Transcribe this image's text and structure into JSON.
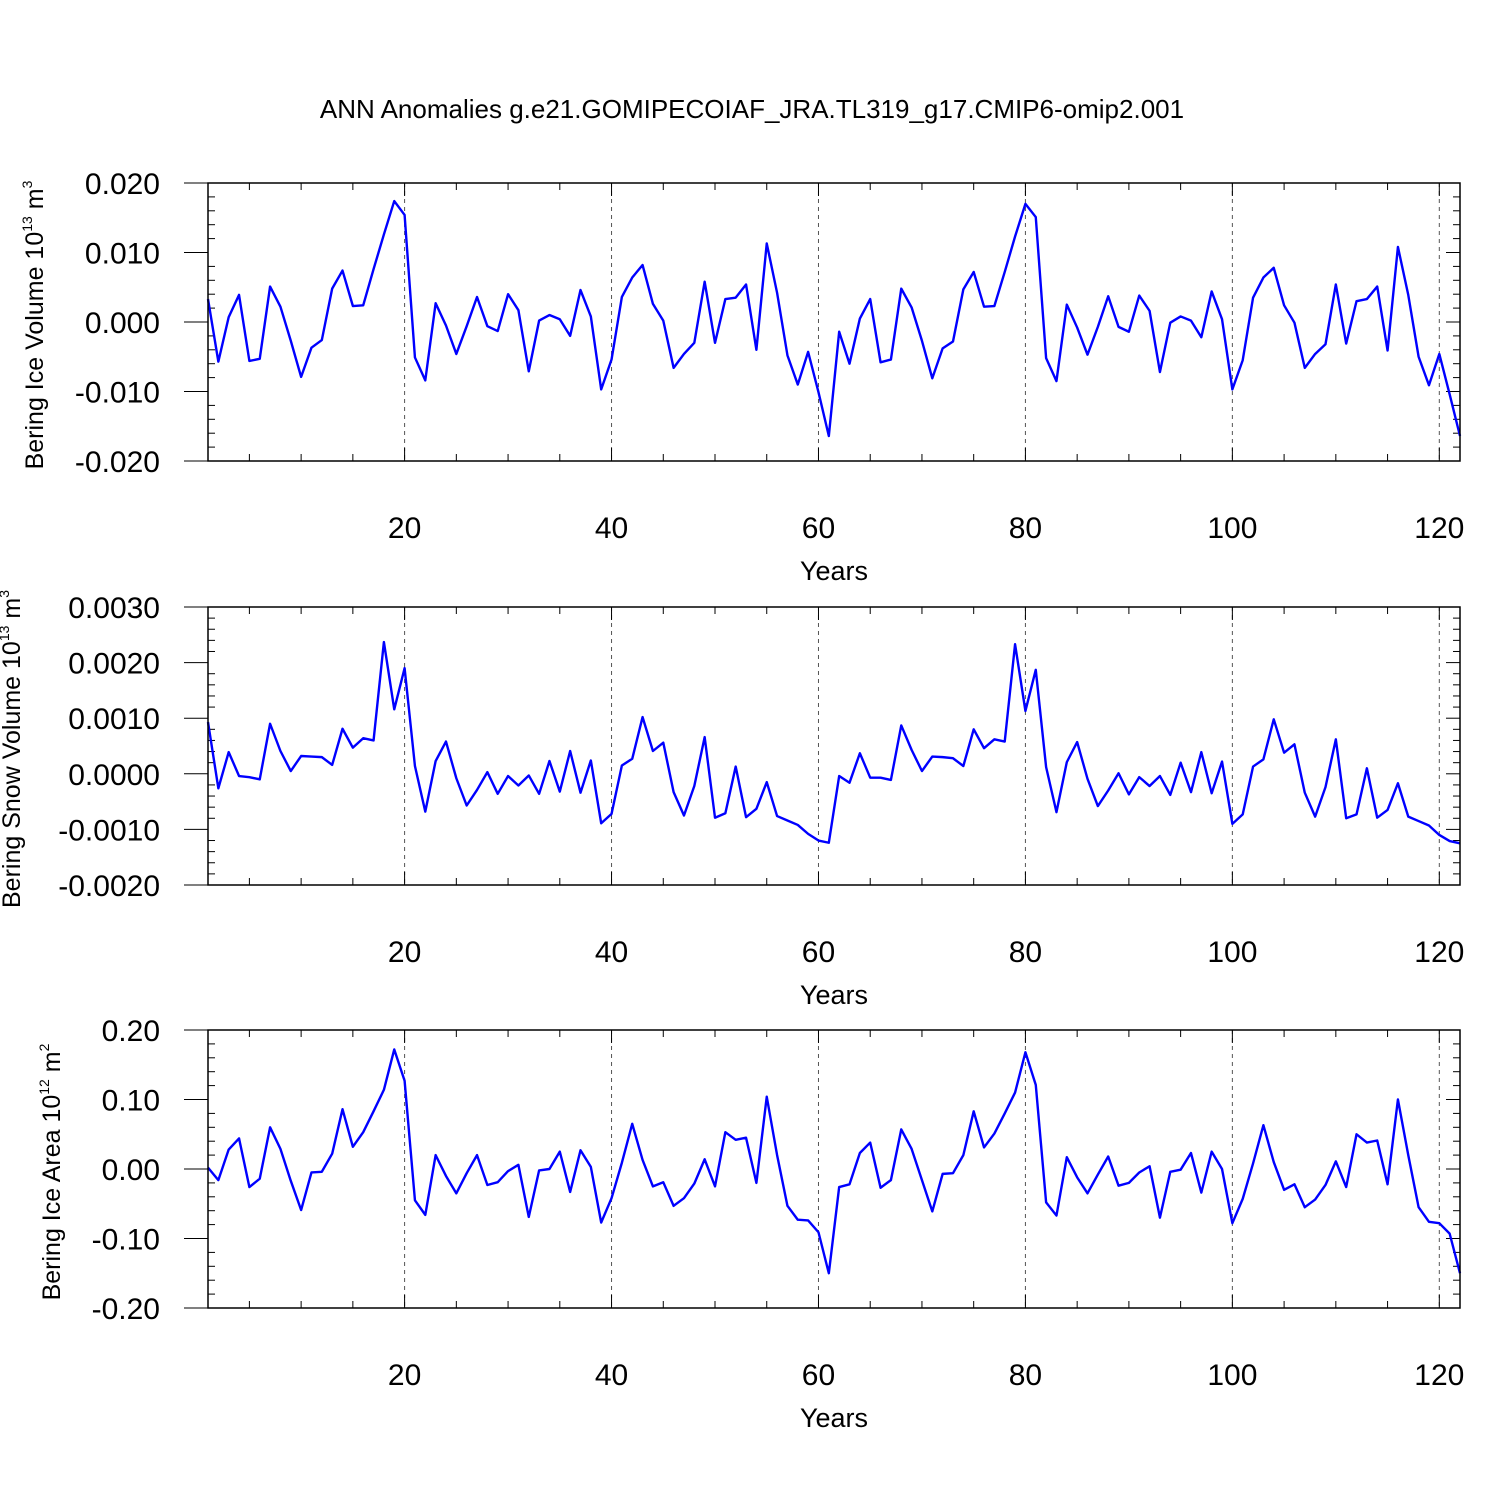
{
  "title": "ANN Anomalies g.e21.GOMIPECOIAF_JRA.TL319_g17.CMIP6-omip2.001",
  "line_color": "#0000ff",
  "chart_data": [
    {
      "type": "line",
      "title": "",
      "xlabel": "Years",
      "ylabel": {
        "base": "Bering Ice Volume 10",
        "exp": "13",
        "unit": " m",
        "unit_exp": "3"
      },
      "xlim": [
        1,
        122
      ],
      "ylim": [
        -0.02,
        0.02
      ],
      "xticks": [
        20,
        40,
        60,
        80,
        100,
        120
      ],
      "xtick_labels": [
        "20",
        "40",
        "60",
        "80",
        "100",
        "120"
      ],
      "yticks": [
        0.02,
        0.01,
        0.0,
        -0.01,
        -0.02
      ],
      "ytick_labels": [
        "0.020",
        "0.010",
        "0.000",
        "-0.010",
        "-0.020"
      ],
      "grid": "x-dashed",
      "series": [
        {
          "name": "Bering Ice Volume",
          "x_start": 1,
          "values": [
            0.0033,
            -0.0057,
            0.0007,
            0.0039,
            -0.0056,
            -0.0053,
            0.0051,
            0.0022,
            -0.0027,
            -0.0079,
            -0.0037,
            -0.0026,
            0.0048,
            0.0074,
            0.0023,
            0.0024,
            0.0076,
            0.0126,
            0.0174,
            0.0154,
            -0.0051,
            -0.0084,
            0.0027,
            -0.0005,
            -0.0046,
            -0.0006,
            0.0036,
            -0.0006,
            -0.0013,
            0.004,
            0.0017,
            -0.0071,
            0.0002,
            0.001,
            0.0004,
            -0.002,
            0.0046,
            0.0008,
            -0.0097,
            -0.0054,
            0.0036,
            0.0064,
            0.0082,
            0.0026,
            0.0002,
            -0.0066,
            -0.0046,
            -0.003,
            0.0058,
            -0.003,
            0.0033,
            0.0035,
            0.0054,
            -0.004,
            0.0113,
            0.0042,
            -0.0048,
            -0.009,
            -0.0043,
            -0.0101,
            -0.0164,
            -0.0014,
            -0.006,
            0.0005,
            0.0033,
            -0.0058,
            -0.0054,
            0.0048,
            0.0021,
            -0.0027,
            -0.0081,
            -0.0038,
            -0.0028,
            0.0047,
            0.0072,
            0.0022,
            0.0023,
            0.0072,
            0.0123,
            0.017,
            0.0151,
            -0.0052,
            -0.0085,
            0.0025,
            -0.0008,
            -0.0047,
            -0.0007,
            0.0037,
            -0.0007,
            -0.0014,
            0.0038,
            0.0016,
            -0.0072,
            -0.0001,
            0.0008,
            0.0002,
            -0.0022,
            0.0044,
            0.0004,
            -0.0097,
            -0.0055,
            0.0035,
            0.0064,
            0.0078,
            0.0024,
            -0.0001,
            -0.0066,
            -0.0046,
            -0.0032,
            0.0054,
            -0.0031,
            0.003,
            0.0033,
            0.0051,
            -0.0041,
            0.0108,
            0.0039,
            -0.005,
            -0.0091,
            -0.0046,
            -0.0104,
            -0.0164
          ]
        }
      ]
    },
    {
      "type": "line",
      "title": "",
      "xlabel": "Years",
      "ylabel": {
        "base": "Bering Snow Volume 10",
        "exp": "13",
        "unit": " m",
        "unit_exp": "3"
      },
      "xlim": [
        1,
        122
      ],
      "ylim": [
        -0.002,
        0.003
      ],
      "xticks": [
        20,
        40,
        60,
        80,
        100,
        120
      ],
      "xtick_labels": [
        "20",
        "40",
        "60",
        "80",
        "100",
        "120"
      ],
      "yticks": [
        0.003,
        0.002,
        0.001,
        0.0,
        -0.001,
        -0.002
      ],
      "ytick_labels": [
        "0.0030",
        "0.0020",
        "0.0010",
        "0.0000",
        "-0.0010",
        "-0.0020"
      ],
      "grid": "x-dashed",
      "series": [
        {
          "name": "Bering Snow Volume",
          "x_start": 1,
          "values": [
            0.00093,
            -0.00026,
            0.00039,
            -4e-05,
            -6e-05,
            -0.0001,
            0.0009,
            0.00041,
            5e-05,
            0.00032,
            0.00031,
            0.0003,
            0.00016,
            0.00081,
            0.00047,
            0.00064,
            0.0006,
            0.00237,
            0.00116,
            0.0019,
            0.00014,
            -0.00068,
            0.00023,
            0.00058,
            -8e-05,
            -0.00057,
            -0.00029,
            3e-05,
            -0.00036,
            -4e-05,
            -0.00021,
            -3e-05,
            -0.00036,
            0.00023,
            -0.00032,
            0.00041,
            -0.00034,
            0.00024,
            -0.00089,
            -0.00072,
            0.00015,
            0.00027,
            0.00102,
            0.00041,
            0.00056,
            -0.00033,
            -0.00075,
            -0.00022,
            0.00066,
            -0.00079,
            -0.00071,
            0.00013,
            -0.00078,
            -0.00063,
            -0.00015,
            -0.00076,
            -0.00084,
            -0.00092,
            -0.00108,
            -0.0012,
            -0.00124,
            -4e-05,
            -0.00016,
            0.00037,
            -7e-05,
            -7e-05,
            -0.00011,
            0.00087,
            0.00043,
            5e-05,
            0.00031,
            0.0003,
            0.00028,
            0.00014,
            0.0008,
            0.00046,
            0.00062,
            0.00058,
            0.00233,
            0.00113,
            0.00187,
            0.00012,
            -0.00069,
            0.00021,
            0.00057,
            -9e-05,
            -0.00058,
            -0.0003,
            1e-05,
            -0.00037,
            -6e-05,
            -0.00022,
            -4e-05,
            -0.00038,
            0.0002,
            -0.00033,
            0.00039,
            -0.00035,
            0.00022,
            -0.0009,
            -0.00073,
            0.00013,
            0.00026,
            0.00098,
            0.00038,
            0.00053,
            -0.00034,
            -0.00077,
            -0.00024,
            0.00062,
            -0.0008,
            -0.00073,
            0.0001,
            -0.00079,
            -0.00065,
            -0.00017,
            -0.00077,
            -0.00085,
            -0.00093,
            -0.0011,
            -0.00121,
            -0.00125
          ]
        }
      ]
    },
    {
      "type": "line",
      "title": "",
      "xlabel": "Years",
      "ylabel": {
        "base": "Bering Ice Area 10",
        "exp": "12",
        "unit": " m",
        "unit_exp": "2"
      },
      "xlim": [
        1,
        122
      ],
      "ylim": [
        -0.2,
        0.2
      ],
      "xticks": [
        20,
        40,
        60,
        80,
        100,
        120
      ],
      "xtick_labels": [
        "20",
        "40",
        "60",
        "80",
        "100",
        "120"
      ],
      "yticks": [
        0.2,
        0.1,
        0.0,
        -0.1,
        -0.2
      ],
      "ytick_labels": [
        "0.20",
        "0.10",
        "0.00",
        "-0.10",
        "-0.20"
      ],
      "grid": "x-dashed",
      "series": [
        {
          "name": "Bering Ice Area",
          "x_start": 1,
          "values": [
            0.002,
            -0.016,
            0.028,
            0.044,
            -0.026,
            -0.014,
            0.06,
            0.029,
            -0.017,
            -0.059,
            -0.005,
            -0.004,
            0.022,
            0.086,
            0.032,
            0.053,
            0.083,
            0.114,
            0.172,
            0.127,
            -0.045,
            -0.066,
            0.02,
            -0.01,
            -0.035,
            -0.006,
            0.02,
            -0.023,
            -0.019,
            -0.003,
            0.006,
            -0.069,
            -0.002,
            0.0,
            0.025,
            -0.033,
            0.027,
            0.003,
            -0.077,
            -0.042,
            0.009,
            0.065,
            0.013,
            -0.025,
            -0.019,
            -0.053,
            -0.042,
            -0.021,
            0.014,
            -0.025,
            0.053,
            0.042,
            0.045,
            -0.02,
            0.104,
            0.02,
            -0.053,
            -0.073,
            -0.074,
            -0.091,
            -0.15,
            -0.026,
            -0.022,
            0.023,
            0.038,
            -0.027,
            -0.016,
            0.057,
            0.029,
            -0.016,
            -0.061,
            -0.007,
            -0.006,
            0.02,
            0.083,
            0.031,
            0.051,
            0.08,
            0.11,
            0.168,
            0.121,
            -0.048,
            -0.067,
            0.017,
            -0.012,
            -0.035,
            -0.008,
            0.018,
            -0.024,
            -0.02,
            -0.005,
            0.004,
            -0.07,
            -0.004,
            -0.001,
            0.023,
            -0.034,
            0.025,
            0.0,
            -0.078,
            -0.043,
            0.008,
            0.063,
            0.01,
            -0.03,
            -0.022,
            -0.055,
            -0.044,
            -0.023,
            0.011,
            -0.026,
            0.05,
            0.038,
            0.041,
            -0.022,
            0.1,
            0.02,
            -0.055,
            -0.076,
            -0.078,
            -0.093,
            -0.15
          ]
        }
      ]
    }
  ]
}
